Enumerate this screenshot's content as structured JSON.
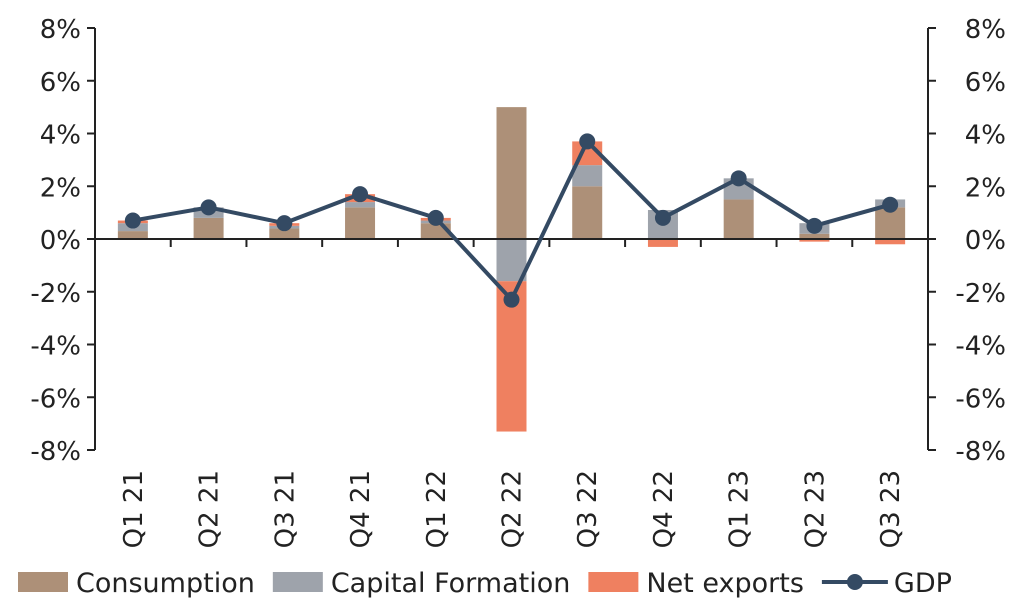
{
  "chart_data": {
    "type": "bar",
    "stacked": true,
    "categories": [
      "Q1 21",
      "Q2 21",
      "Q3 21",
      "Q4 21",
      "Q1 22",
      "Q2 22",
      "Q3 22",
      "Q4 22",
      "Q1 23",
      "Q2 23",
      "Q3 23"
    ],
    "series": [
      {
        "name": "Consumption",
        "kind": "bar",
        "color": "#ad9078",
        "values": [
          0.3,
          0.8,
          0.4,
          1.2,
          0.6,
          5.0,
          2.0,
          0.0,
          1.5,
          0.2,
          1.2
        ]
      },
      {
        "name": "Capital Formation",
        "kind": "bar",
        "color": "#9ea3ab",
        "values": [
          0.3,
          0.4,
          0.1,
          0.2,
          0.1,
          -1.6,
          0.8,
          1.1,
          0.8,
          0.4,
          0.3
        ]
      },
      {
        "name": "Net exports",
        "kind": "bar",
        "color": "#ef8060",
        "values": [
          0.1,
          0.0,
          0.1,
          0.3,
          0.1,
          -5.7,
          0.9,
          -0.3,
          0.0,
          -0.1,
          -0.2
        ]
      },
      {
        "name": "GDP",
        "kind": "line",
        "color": "#344a63",
        "values": [
          0.7,
          1.2,
          0.6,
          1.7,
          0.8,
          -2.3,
          3.7,
          0.8,
          2.3,
          0.5,
          1.3
        ]
      }
    ],
    "yticks": [
      "8%",
      "6%",
      "4%",
      "2%",
      "0%",
      "-2%",
      "-4%",
      "-6%",
      "-8%"
    ],
    "ylim": [
      -8,
      8
    ],
    "secondary_yticks": [
      "8%",
      "6%",
      "4%",
      "2%",
      "0%",
      "-2%",
      "-4%",
      "-6%",
      "-8%"
    ],
    "grid": false,
    "legend_position": "bottom"
  }
}
